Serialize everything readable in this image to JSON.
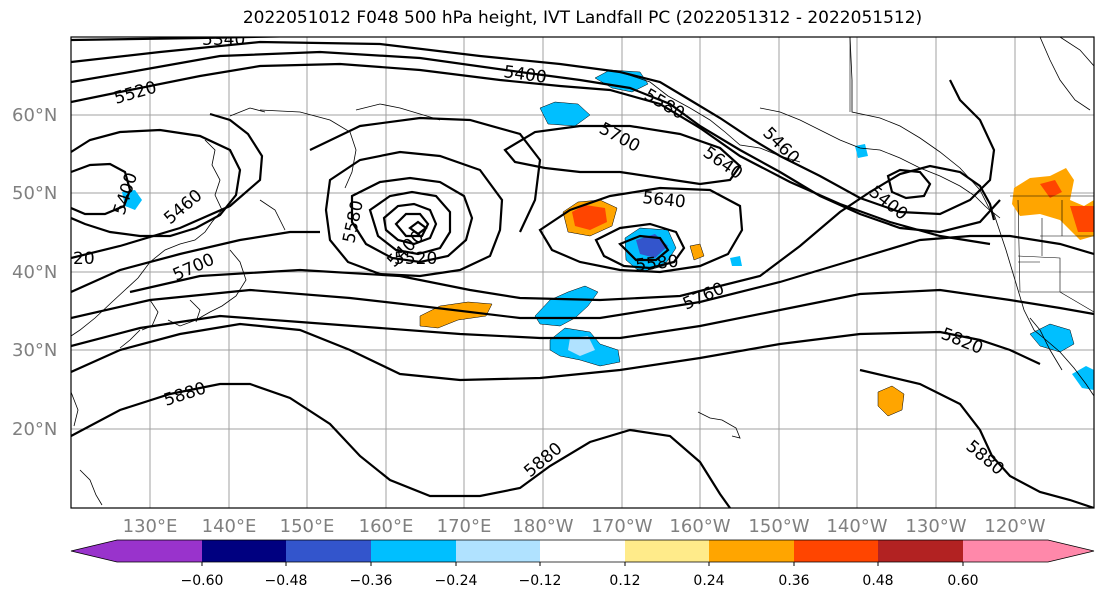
{
  "title": "2022051012 F048 500 hPa height, IVT Landfall PC (2022051312 - 2022051512)",
  "lat_labels": [
    "60°N",
    "50°N",
    "40°N",
    "30°N",
    "20°N"
  ],
  "lon_labels": [
    "130°E",
    "140°E",
    "150°E",
    "160°E",
    "170°E",
    "180°W",
    "170°W",
    "160°W",
    "150°W",
    "140°W",
    "130°W",
    "120°W"
  ],
  "colorbar": {
    "ticks": [
      "−0.60",
      "−0.48",
      "−0.36",
      "−0.24",
      "−0.12",
      "0.12",
      "0.24",
      "0.36",
      "0.48",
      "0.60"
    ],
    "colors": [
      "#9933cc",
      "#000080",
      "#3355cc",
      "#00bfff",
      "#b0e2ff",
      "#ffffff",
      "#ffeb8a",
      "#ffa500",
      "#ff4500",
      "#b22222",
      "#ff88aa"
    ]
  },
  "contour_labels": [
    "5340",
    "5400",
    "5520",
    "5580",
    "5700",
    "5640",
    "5460",
    "5400",
    "5460",
    "5580",
    "5400",
    "5520",
    "5640",
    "5580",
    "5700",
    "5760",
    "5820",
    "5880",
    "5880",
    "5880",
    "5400",
    "20"
  ]
}
